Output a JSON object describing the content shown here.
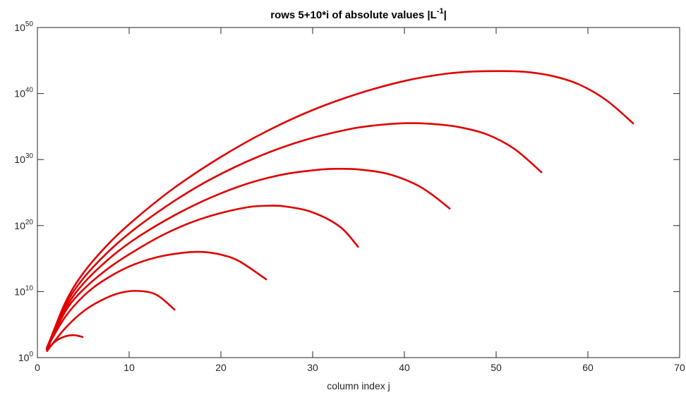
{
  "chart_data": {
    "type": "line",
    "title": "rows 5+10*i of absolute values |L",
    "title_sup": "-1",
    "title_end": "|",
    "xlabel": "column index j",
    "ylabel": "",
    "xlim": [
      0,
      70
    ],
    "ylim": [
      0,
      50
    ],
    "y_scale": "log10",
    "x_ticks": [
      0,
      10,
      20,
      30,
      40,
      50,
      60,
      70
    ],
    "y_ticks": [
      {
        "base": "10",
        "exp": "0"
      },
      {
        "base": "10",
        "exp": "10"
      },
      {
        "base": "10",
        "exp": "20"
      },
      {
        "base": "10",
        "exp": "30"
      },
      {
        "base": "10",
        "exp": "40"
      },
      {
        "base": "10",
        "exp": "50"
      }
    ],
    "y_tick_values": [
      0,
      10,
      20,
      30,
      40,
      50
    ],
    "grid": false,
    "box": true,
    "line_color": "#e00000",
    "series": [
      {
        "row": 5,
        "x": [
          1,
          2,
          3,
          4,
          5
        ],
        "log10_y": [
          1.2,
          2.5,
          3.2,
          3.4,
          3.1
        ]
      },
      {
        "row": 15,
        "x": [
          1,
          3,
          5,
          7,
          9,
          11,
          13,
          15
        ],
        "log10_y": [
          0.9,
          4.4,
          7.0,
          8.7,
          9.8,
          10.1,
          9.5,
          7.2
        ]
      },
      {
        "row": 25,
        "x": [
          1,
          3,
          5,
          7,
          10,
          13,
          16,
          18,
          20,
          22,
          25
        ],
        "log10_y": [
          1.4,
          6.1,
          9.3,
          11.5,
          13.8,
          15.2,
          15.9,
          16.0,
          15.6,
          14.6,
          11.8
        ]
      },
      {
        "row": 35,
        "x": [
          1,
          3,
          5,
          8,
          11,
          14,
          17,
          20,
          23,
          25,
          27,
          30,
          33,
          35
        ],
        "log10_y": [
          1.1,
          6.9,
          10.3,
          13.8,
          16.5,
          18.8,
          20.6,
          21.9,
          22.8,
          23.0,
          22.9,
          22.0,
          19.8,
          16.7
        ]
      },
      {
        "row": 45,
        "x": [
          1,
          3,
          5,
          8,
          11,
          15,
          19,
          23,
          27,
          31,
          33,
          35,
          38,
          41,
          43,
          45
        ],
        "log10_y": [
          1.2,
          7.3,
          11.2,
          15.2,
          18.3,
          21.6,
          24.3,
          26.4,
          27.8,
          28.5,
          28.6,
          28.5,
          27.9,
          26.4,
          24.7,
          22.5
        ]
      },
      {
        "row": 55,
        "x": [
          1,
          3,
          5,
          8,
          11,
          15,
          19,
          24,
          29,
          34,
          37,
          40,
          43,
          46,
          49,
          52,
          55
        ],
        "log10_y": [
          1.4,
          7.8,
          12.0,
          16.4,
          19.9,
          23.8,
          27.1,
          30.4,
          32.9,
          34.6,
          35.2,
          35.5,
          35.4,
          34.9,
          33.8,
          31.6,
          28.0
        ]
      },
      {
        "row": 65,
        "x": [
          1,
          3,
          5,
          8,
          11,
          15,
          20,
          25,
          30,
          35,
          40,
          44,
          47,
          50,
          53,
          56,
          59,
          62,
          65
        ],
        "log10_y": [
          1.2,
          8.2,
          12.8,
          17.6,
          21.4,
          25.8,
          30.4,
          34.3,
          37.5,
          40.0,
          41.9,
          42.9,
          43.3,
          43.4,
          43.3,
          42.7,
          41.4,
          39.0,
          35.4
        ]
      }
    ]
  }
}
